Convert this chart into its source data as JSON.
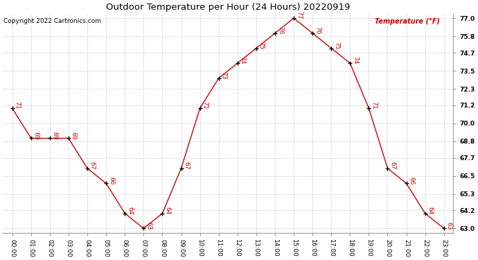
{
  "title": "Outdoor Temperature per Hour (24 Hours) 20220919",
  "copyright": "Copyright 2022 Cartronics.com",
  "legend_label": "Temperature (°F)",
  "hours": [
    0,
    1,
    2,
    3,
    4,
    5,
    6,
    7,
    8,
    9,
    10,
    11,
    12,
    13,
    14,
    15,
    16,
    17,
    18,
    19,
    20,
    21,
    22,
    23
  ],
  "hour_labels": [
    "00:00",
    "01:00",
    "02:00",
    "03:00",
    "04:00",
    "05:00",
    "06:00",
    "07:00",
    "08:00",
    "09:00",
    "10:00",
    "11:00",
    "12:00",
    "13:00",
    "14:00",
    "15:00",
    "16:00",
    "17:00",
    "18:00",
    "19:00",
    "20:00",
    "21:00",
    "22:00",
    "23:00"
  ],
  "temps": [
    71,
    69,
    69,
    69,
    67,
    66,
    64,
    63,
    64,
    67,
    71,
    73,
    74,
    75,
    76,
    77,
    76,
    75,
    74,
    71,
    67,
    66,
    64,
    63
  ],
  "yticks": [
    63.0,
    64.2,
    65.3,
    66.5,
    67.7,
    68.8,
    70.0,
    71.2,
    72.3,
    73.5,
    74.7,
    75.8,
    77.0
  ],
  "ymin": 62.7,
  "ymax": 77.3,
  "line_color": "#cc0000",
  "marker_color": "black",
  "label_color": "#cc0000",
  "title_color": "black",
  "copyright_color": "black",
  "legend_color": "#cc0000",
  "grid_color": "#cccccc",
  "background_color": "#ffffff",
  "title_fontsize": 9.5,
  "label_fontsize": 6.5,
  "axis_fontsize": 6.5,
  "copyright_fontsize": 6.5
}
